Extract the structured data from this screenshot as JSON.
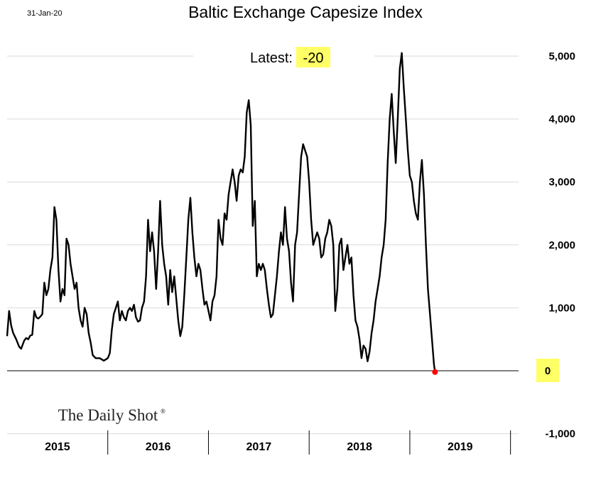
{
  "header": {
    "date": "31-Jan-20"
  },
  "latest": {
    "label": "Latest:",
    "value": "-20"
  },
  "brand": {
    "name": "The Daily Shot",
    "mark": "®"
  },
  "colors": {
    "line": "#000000",
    "highlight": "#ffff66",
    "latest_point": "#ff0000",
    "grid": "#d9d9d9"
  },
  "chart_data": {
    "type": "line",
    "title": "Baltic Exchange Capesize Index",
    "xlabel": "",
    "ylabel": "",
    "x_range": [
      2015.0,
      2020.08
    ],
    "ylim": [
      -1000,
      5200
    ],
    "y_ticks": [
      5000,
      4000,
      3000,
      2000,
      1000,
      0,
      -1000
    ],
    "y_tick_labels": [
      "5,000",
      "4,000",
      "3,000",
      "2,000",
      "1,000",
      "0",
      "-1,000"
    ],
    "x_categories": [
      "2015",
      "2016",
      "2017",
      "2018",
      "2019"
    ],
    "y_axis_side": "right",
    "grid": true,
    "highlighted_tick": "0",
    "series": [
      {
        "points": [
          [
            2015.0,
            550
          ],
          [
            2015.02,
            950
          ],
          [
            2015.04,
            720
          ],
          [
            2015.06,
            600
          ],
          [
            2015.09,
            500
          ],
          [
            2015.12,
            380
          ],
          [
            2015.14,
            350
          ],
          [
            2015.17,
            480
          ],
          [
            2015.19,
            520
          ],
          [
            2015.21,
            500
          ],
          [
            2015.23,
            560
          ],
          [
            2015.25,
            570
          ],
          [
            2015.27,
            950
          ],
          [
            2015.29,
            850
          ],
          [
            2015.31,
            830
          ],
          [
            2015.33,
            860
          ],
          [
            2015.35,
            900
          ],
          [
            2015.37,
            1400
          ],
          [
            2015.39,
            1200
          ],
          [
            2015.41,
            1300
          ],
          [
            2015.43,
            1600
          ],
          [
            2015.45,
            1800
          ],
          [
            2015.47,
            2600
          ],
          [
            2015.49,
            2400
          ],
          [
            2015.51,
            1600
          ],
          [
            2015.53,
            1100
          ],
          [
            2015.55,
            1300
          ],
          [
            2015.57,
            1200
          ],
          [
            2015.59,
            2100
          ],
          [
            2015.61,
            2000
          ],
          [
            2015.63,
            1700
          ],
          [
            2015.65,
            1500
          ],
          [
            2015.67,
            1300
          ],
          [
            2015.69,
            1400
          ],
          [
            2015.71,
            1000
          ],
          [
            2015.73,
            800
          ],
          [
            2015.75,
            700
          ],
          [
            2015.77,
            1000
          ],
          [
            2015.79,
            900
          ],
          [
            2015.81,
            600
          ],
          [
            2015.83,
            450
          ],
          [
            2015.85,
            250
          ],
          [
            2015.88,
            200
          ],
          [
            2015.92,
            200
          ],
          [
            2015.96,
            160
          ],
          [
            2016.0,
            200
          ],
          [
            2016.02,
            280
          ],
          [
            2016.04,
            650
          ],
          [
            2016.06,
            900
          ],
          [
            2016.08,
            1000
          ],
          [
            2016.1,
            1100
          ],
          [
            2016.12,
            800
          ],
          [
            2016.14,
            950
          ],
          [
            2016.16,
            850
          ],
          [
            2016.18,
            800
          ],
          [
            2016.2,
            950
          ],
          [
            2016.22,
            1000
          ],
          [
            2016.24,
            950
          ],
          [
            2016.26,
            1050
          ],
          [
            2016.28,
            850
          ],
          [
            2016.3,
            780
          ],
          [
            2016.32,
            800
          ],
          [
            2016.34,
            1000
          ],
          [
            2016.36,
            1100
          ],
          [
            2016.38,
            1500
          ],
          [
            2016.4,
            2400
          ],
          [
            2016.42,
            1900
          ],
          [
            2016.44,
            2200
          ],
          [
            2016.46,
            1900
          ],
          [
            2016.48,
            1300
          ],
          [
            2016.5,
            1900
          ],
          [
            2016.52,
            2700
          ],
          [
            2016.54,
            2000
          ],
          [
            2016.56,
            1700
          ],
          [
            2016.58,
            1500
          ],
          [
            2016.6,
            1050
          ],
          [
            2016.62,
            1600
          ],
          [
            2016.64,
            1250
          ],
          [
            2016.66,
            1500
          ],
          [
            2016.68,
            1150
          ],
          [
            2016.7,
            800
          ],
          [
            2016.72,
            550
          ],
          [
            2016.74,
            700
          ],
          [
            2016.76,
            1200
          ],
          [
            2016.78,
            1800
          ],
          [
            2016.8,
            2400
          ],
          [
            2016.82,
            2750
          ],
          [
            2016.84,
            2200
          ],
          [
            2016.86,
            1800
          ],
          [
            2016.88,
            1500
          ],
          [
            2016.9,
            1700
          ],
          [
            2016.92,
            1600
          ],
          [
            2016.94,
            1300
          ],
          [
            2016.96,
            1050
          ],
          [
            2016.98,
            1100
          ],
          [
            2017.0,
            950
          ],
          [
            2017.02,
            800
          ],
          [
            2017.04,
            1100
          ],
          [
            2017.06,
            1200
          ],
          [
            2017.08,
            1500
          ],
          [
            2017.1,
            2400
          ],
          [
            2017.12,
            2100
          ],
          [
            2017.14,
            2000
          ],
          [
            2017.16,
            2500
          ],
          [
            2017.18,
            2400
          ],
          [
            2017.2,
            2800
          ],
          [
            2017.22,
            3000
          ],
          [
            2017.24,
            3200
          ],
          [
            2017.26,
            3000
          ],
          [
            2017.28,
            2700
          ],
          [
            2017.3,
            3100
          ],
          [
            2017.32,
            3200
          ],
          [
            2017.34,
            3150
          ],
          [
            2017.36,
            3400
          ],
          [
            2017.38,
            4100
          ],
          [
            2017.4,
            4300
          ],
          [
            2017.42,
            3900
          ],
          [
            2017.44,
            2300
          ],
          [
            2017.46,
            2700
          ],
          [
            2017.48,
            1500
          ],
          [
            2017.5,
            1700
          ],
          [
            2017.52,
            1600
          ],
          [
            2017.54,
            1700
          ],
          [
            2017.56,
            1600
          ],
          [
            2017.58,
            1300
          ],
          [
            2017.6,
            1050
          ],
          [
            2017.62,
            850
          ],
          [
            2017.64,
            900
          ],
          [
            2017.66,
            1200
          ],
          [
            2017.68,
            1500
          ],
          [
            2017.7,
            1900
          ],
          [
            2017.72,
            2200
          ],
          [
            2017.74,
            2000
          ],
          [
            2017.76,
            2600
          ],
          [
            2017.78,
            2100
          ],
          [
            2017.8,
            1900
          ],
          [
            2017.82,
            1400
          ],
          [
            2017.84,
            1100
          ],
          [
            2017.86,
            2000
          ],
          [
            2017.88,
            2200
          ],
          [
            2017.9,
            2800
          ],
          [
            2017.92,
            3400
          ],
          [
            2017.94,
            3600
          ],
          [
            2017.96,
            3500
          ],
          [
            2017.98,
            3400
          ],
          [
            2018.0,
            3000
          ],
          [
            2018.02,
            2400
          ],
          [
            2018.04,
            2000
          ],
          [
            2018.06,
            2100
          ],
          [
            2018.08,
            2200
          ],
          [
            2018.1,
            2100
          ],
          [
            2018.12,
            1800
          ],
          [
            2018.14,
            1850
          ],
          [
            2018.16,
            2100
          ],
          [
            2018.18,
            2200
          ],
          [
            2018.2,
            2400
          ],
          [
            2018.22,
            2300
          ],
          [
            2018.24,
            2000
          ],
          [
            2018.26,
            950
          ],
          [
            2018.28,
            1300
          ],
          [
            2018.3,
            2000
          ],
          [
            2018.32,
            2100
          ],
          [
            2018.34,
            1600
          ],
          [
            2018.36,
            1800
          ],
          [
            2018.38,
            2000
          ],
          [
            2018.4,
            1700
          ],
          [
            2018.42,
            1800
          ],
          [
            2018.44,
            1200
          ],
          [
            2018.46,
            800
          ],
          [
            2018.48,
            700
          ],
          [
            2018.5,
            500
          ],
          [
            2018.52,
            200
          ],
          [
            2018.54,
            400
          ],
          [
            2018.56,
            350
          ],
          [
            2018.58,
            150
          ],
          [
            2018.6,
            300
          ],
          [
            2018.62,
            600
          ],
          [
            2018.64,
            800
          ],
          [
            2018.66,
            1100
          ],
          [
            2018.68,
            1300
          ],
          [
            2018.7,
            1500
          ],
          [
            2018.72,
            1800
          ],
          [
            2018.74,
            2000
          ],
          [
            2018.76,
            2400
          ],
          [
            2018.78,
            3300
          ],
          [
            2018.8,
            4000
          ],
          [
            2018.82,
            4400
          ],
          [
            2018.84,
            3800
          ],
          [
            2018.86,
            3300
          ],
          [
            2018.88,
            4000
          ],
          [
            2018.9,
            4800
          ],
          [
            2018.92,
            5050
          ],
          [
            2018.94,
            4500
          ],
          [
            2018.96,
            4000
          ],
          [
            2018.98,
            3500
          ],
          [
            2019.0,
            3100
          ],
          [
            2019.02,
            3000
          ],
          [
            2019.04,
            2700
          ],
          [
            2019.06,
            2500
          ],
          [
            2019.08,
            2400
          ],
          [
            2019.1,
            3000
          ],
          [
            2019.12,
            3350
          ],
          [
            2019.14,
            2800
          ],
          [
            2019.16,
            2000
          ],
          [
            2019.18,
            1300
          ],
          [
            2019.2,
            900
          ],
          [
            2019.22,
            500
          ],
          [
            2019.24,
            100
          ],
          [
            2019.25,
            -20
          ]
        ]
      }
    ]
  }
}
